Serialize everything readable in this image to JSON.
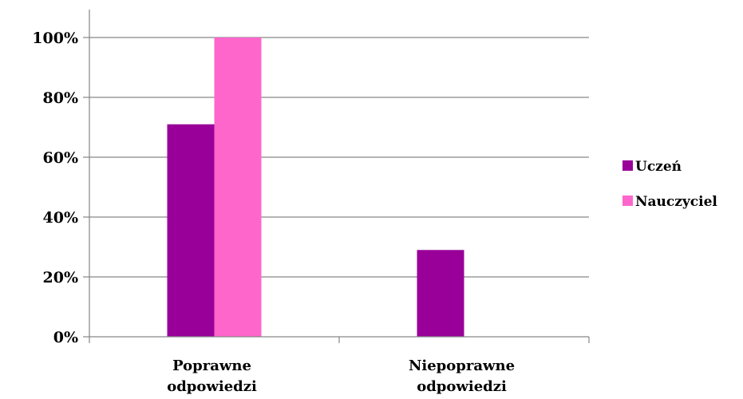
{
  "chart_data": {
    "type": "bar",
    "categories": [
      [
        "Poprawne",
        "odpowiedzi"
      ],
      [
        "Niepoprawne",
        "odpowiedzi"
      ]
    ],
    "series": [
      {
        "name": "Uczeń",
        "color": "#990099",
        "values": [
          71,
          29
        ]
      },
      {
        "name": "Nauczyciel",
        "color": "#ff66cc",
        "values": [
          100,
          0
        ]
      }
    ],
    "ylim": [
      0,
      100
    ],
    "yticks": [
      "0%",
      "20%",
      "40%",
      "60%",
      "80%",
      "100%"
    ],
    "grid": true,
    "legend": "right",
    "gridline_color": "#868686",
    "axis_color": "#868686"
  }
}
